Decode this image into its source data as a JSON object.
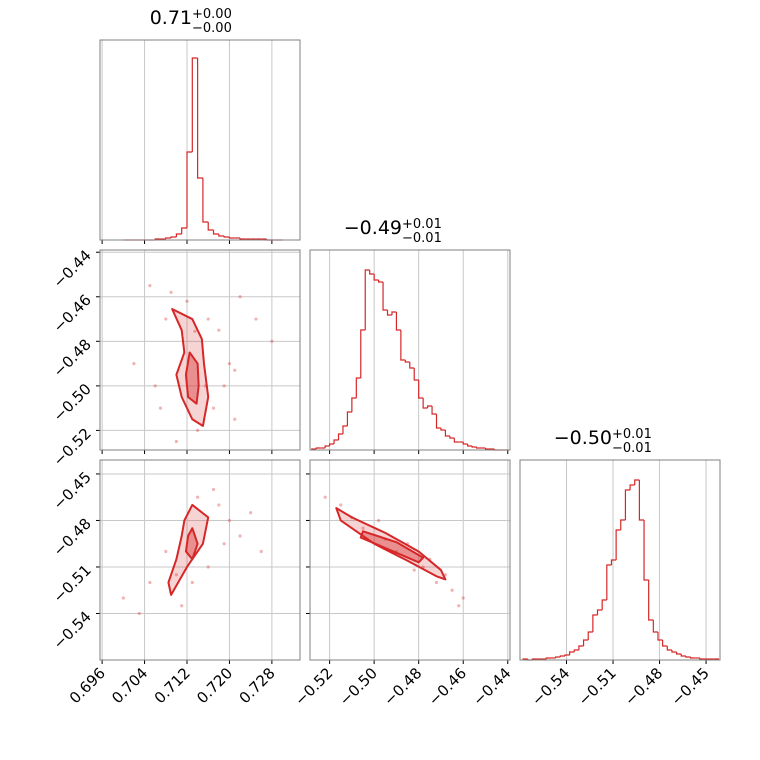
{
  "chart_data": {
    "type": "corner",
    "color": "#d62728",
    "grid": true,
    "params": [
      {
        "title": {
          "value": "0.71",
          "plus": "+0.00",
          "minus": "−0.00"
        },
        "lim": [
          0.6956,
          0.7333
        ],
        "ticks": [
          0.696,
          0.704,
          0.712,
          {
            "value": 0.72,
            "label": "0.720"
          },
          0.728
        ],
        "hist": {
          "ylim": [
            0,
            200
          ],
          "bins": [
            0.7,
            0.701,
            0.702,
            0.703,
            0.704,
            0.705,
            0.706,
            0.707,
            0.708,
            0.709,
            0.71,
            0.711,
            0.712,
            0.713,
            0.714,
            0.715,
            0.716,
            0.717,
            0.718,
            0.719,
            0.72,
            0.721,
            0.722,
            0.723,
            0.724,
            0.725,
            0.726,
            0.727,
            0.728,
            0.729,
            0.73
          ],
          "counts": [
            0,
            0,
            0,
            0,
            0,
            0,
            1,
            1,
            2,
            3,
            6,
            12,
            88,
            182,
            62,
            18,
            10,
            6,
            4,
            3,
            2,
            2,
            1,
            1,
            1,
            1,
            1,
            0,
            0,
            0
          ]
        }
      },
      {
        "title": {
          "value": "−0.49",
          "plus": "+0.01",
          "minus": "−0.01"
        },
        "lim": [
          -0.5288,
          -0.439
        ],
        "ticks": [
          {
            "value": -0.52,
            "label": "−0.52"
          },
          {
            "value": -0.5,
            "label": "−0.50"
          },
          {
            "value": -0.48,
            "label": "−0.48"
          },
          {
            "value": -0.46,
            "label": "−0.46"
          },
          {
            "value": -0.44,
            "label": "−0.44"
          }
        ],
        "hist": {
          "ylim": [
            0,
            200
          ],
          "bins": [
            -0.528,
            -0.526,
            -0.524,
            -0.522,
            -0.52,
            -0.518,
            -0.516,
            -0.514,
            -0.512,
            -0.51,
            -0.508,
            -0.506,
            -0.504,
            -0.502,
            -0.5,
            -0.498,
            -0.496,
            -0.494,
            -0.492,
            -0.49,
            -0.488,
            -0.486,
            -0.484,
            -0.482,
            -0.48,
            -0.478,
            -0.476,
            -0.474,
            -0.472,
            -0.47,
            -0.468,
            -0.466,
            -0.464,
            -0.462,
            -0.46,
            -0.458,
            -0.456,
            -0.454,
            -0.452,
            -0.45,
            -0.448,
            -0.446,
            -0.444,
            -0.442,
            -0.44
          ],
          "counts": [
            1,
            2,
            2,
            4,
            6,
            10,
            16,
            24,
            38,
            52,
            72,
            120,
            180,
            176,
            170,
            168,
            140,
            135,
            138,
            120,
            90,
            88,
            82,
            70,
            52,
            42,
            44,
            36,
            22,
            20,
            14,
            12,
            8,
            8,
            6,
            4,
            3,
            2,
            2,
            1,
            1,
            0,
            0,
            0
          ]
        }
      },
      {
        "title": {
          "value": "−0.50",
          "plus": "+0.01",
          "minus": "−0.01"
        },
        "lim": [
          -0.57,
          -0.441
        ],
        "ticks": [
          {
            "value": -0.54,
            "label": "−0.54"
          },
          {
            "value": -0.51,
            "label": "−0.51"
          },
          {
            "value": -0.48,
            "label": "−0.48"
          },
          {
            "value": -0.45,
            "label": "−0.45"
          }
        ],
        "hist": {
          "ylim": [
            0,
            200
          ],
          "bins": [
            -0.568,
            -0.565,
            -0.562,
            -0.559,
            -0.556,
            -0.553,
            -0.55,
            -0.547,
            -0.544,
            -0.541,
            -0.538,
            -0.535,
            -0.532,
            -0.529,
            -0.526,
            -0.523,
            -0.52,
            -0.517,
            -0.514,
            -0.511,
            -0.508,
            -0.505,
            -0.502,
            -0.499,
            -0.496,
            -0.493,
            -0.49,
            -0.487,
            -0.484,
            -0.481,
            -0.478,
            -0.475,
            -0.472,
            -0.469,
            -0.466,
            -0.463,
            -0.46,
            -0.457,
            -0.454,
            -0.451,
            -0.448,
            -0.445,
            -0.442
          ],
          "counts": [
            1,
            0,
            1,
            1,
            1,
            2,
            2,
            3,
            4,
            5,
            8,
            10,
            14,
            20,
            28,
            45,
            50,
            60,
            95,
            100,
            130,
            140,
            170,
            175,
            180,
            140,
            80,
            40,
            28,
            20,
            14,
            10,
            8,
            6,
            4,
            3,
            2,
            2,
            1,
            1,
            1,
            1
          ]
        }
      }
    ],
    "pairs": [
      {
        "points": {
          "x": [
            0.705,
            0.708,
            0.718,
            0.72,
            0.722,
            0.706,
            0.71,
            0.717,
            0.725,
            0.728,
            0.719,
            0.709,
            0.714,
            0.702,
            0.716,
            0.712,
            0.721,
            0.707,
            0.7135,
            0.7155,
            0.721
          ],
          "y": [
            -0.455,
            -0.47,
            -0.475,
            -0.49,
            -0.46,
            -0.5,
            -0.525,
            -0.51,
            -0.47,
            -0.48,
            -0.5,
            -0.458,
            -0.52,
            -0.49,
            -0.47,
            -0.462,
            -0.515,
            -0.51,
            -0.4755,
            -0.5,
            -0.493
          ]
        },
        "contours": [
          {
            "x": [
              0.7092,
              0.713,
              0.7148,
              0.7152,
              0.716,
              0.715,
              0.713,
              0.711,
              0.71,
              0.7115,
              0.711
            ],
            "y": [
              -0.4655,
              -0.47,
              -0.479,
              -0.49,
              -0.505,
              -0.518,
              -0.515,
              -0.505,
              -0.495,
              -0.485,
              -0.475
            ]
          },
          {
            "x": [
              0.7125,
              0.714,
              0.7142,
              0.7138,
              0.7122,
              0.7118
            ],
            "y": [
              -0.485,
              -0.49,
              -0.5,
              -0.508,
              -0.505,
              -0.495
            ]
          }
        ]
      },
      {
        "points": {
          "x": [
            0.714,
            0.718,
            0.72,
            0.722,
            0.708,
            0.705,
            0.7,
            0.716,
            0.724,
            0.711,
            0.719,
            0.713,
            0.726,
            0.703,
            0.717,
            0.71
          ],
          "y": [
            -0.465,
            -0.47,
            -0.48,
            -0.49,
            -0.5,
            -0.52,
            -0.53,
            -0.51,
            -0.475,
            -0.535,
            -0.495,
            -0.52,
            -0.5,
            -0.54,
            -0.46,
            -0.515
          ]
        },
        "contours": [
          {
            "x": [
              0.713,
              0.716,
              0.715,
              0.712,
              0.709,
              0.7085,
              0.71,
              0.711,
              0.7115
            ],
            "y": [
              -0.47,
              -0.478,
              -0.495,
              -0.51,
              -0.528,
              -0.52,
              -0.505,
              -0.49,
              -0.48
            ]
          },
          {
            "x": [
              0.713,
              0.714,
              0.713,
              0.7118,
              0.7122
            ],
            "y": [
              -0.485,
              -0.495,
              -0.505,
              -0.5,
              -0.49
            ]
          }
        ]
      },
      {
        "points": {
          "x": [
            -0.522,
            -0.515,
            -0.505,
            -0.498,
            -0.49,
            -0.485,
            -0.478,
            -0.472,
            -0.465,
            -0.46,
            -0.462,
            -0.475,
            -0.495,
            -0.51,
            -0.468,
            -0.482
          ],
          "y": [
            -0.465,
            -0.47,
            -0.485,
            -0.48,
            -0.5,
            -0.495,
            -0.51,
            -0.52,
            -0.525,
            -0.53,
            -0.535,
            -0.505,
            -0.492,
            -0.478,
            -0.515,
            -0.512
          ]
        },
        "contours": [
          {
            "x": [
              -0.517,
              -0.51,
              -0.495,
              -0.48,
              -0.47,
              -0.468,
              -0.472,
              -0.485,
              -0.5,
              -0.515
            ],
            "y": [
              -0.472,
              -0.478,
              -0.488,
              -0.5,
              -0.512,
              -0.518,
              -0.516,
              -0.506,
              -0.495,
              -0.48
            ]
          },
          {
            "x": [
              -0.505,
              -0.49,
              -0.478,
              -0.48,
              -0.493,
              -0.506
            ],
            "y": [
              -0.487,
              -0.494,
              -0.504,
              -0.507,
              -0.499,
              -0.491
            ]
          }
        ]
      }
    ]
  }
}
